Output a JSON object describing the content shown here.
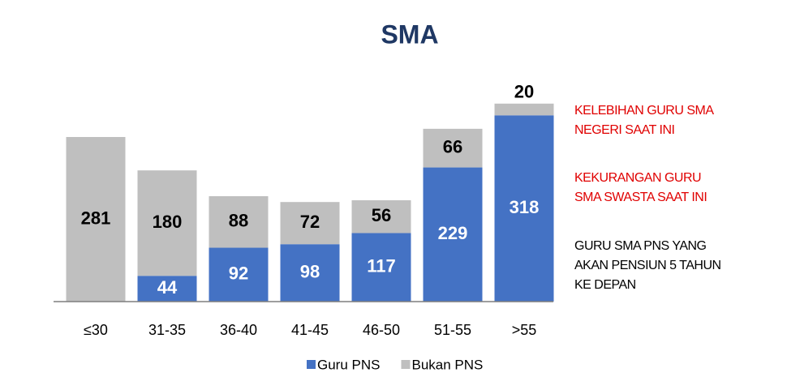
{
  "chart_data": {
    "type": "bar",
    "stacked": true,
    "title": "SMA",
    "categories": [
      "≤30",
      "31-35",
      "36-40",
      "41-45",
      "46-50",
      "51-55",
      ">55"
    ],
    "series": [
      {
        "name": "Guru PNS",
        "color": "#4472c4",
        "values": [
          0,
          44,
          92,
          98,
          117,
          229,
          318
        ]
      },
      {
        "name": "Bukan PNS",
        "color": "#bfbfbf",
        "values": [
          281,
          180,
          88,
          72,
          56,
          66,
          20
        ]
      }
    ],
    "ylim": [
      0,
      350
    ],
    "annotations": [
      {
        "lines": [
          "KELEBIHAN GURU SMA",
          "NEGERI SAAT INI"
        ],
        "color": "#e00000"
      },
      {
        "lines": [
          "KEKURANGAN GURU",
          "SMA SWASTA SAAT INI"
        ],
        "color": "#e00000"
      },
      {
        "lines": [
          "GURU SMA PNS YANG",
          "AKAN PENSIUN 5 TAHUN",
          "KE DEPAN"
        ],
        "color": "#000000"
      }
    ]
  }
}
